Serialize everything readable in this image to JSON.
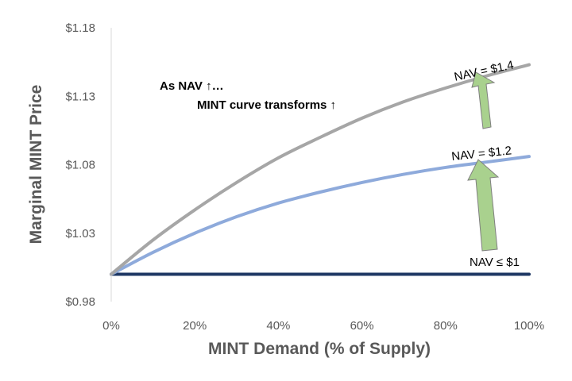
{
  "chart_data": {
    "type": "line",
    "title": "",
    "xlabel": "MINT Demand (% of Supply)",
    "ylabel": "Marginal MINT Price",
    "x": [
      0,
      10,
      20,
      30,
      40,
      50,
      60,
      70,
      80,
      90,
      100
    ],
    "x_tick_labels": [
      "0%",
      "20%",
      "40%",
      "60%",
      "80%",
      "100%"
    ],
    "x_tick_values": [
      0,
      20,
      40,
      60,
      80,
      100
    ],
    "xlim": [
      0,
      100
    ],
    "y_tick_labels": [
      "$0.98",
      "$1.03",
      "$1.08",
      "$1.13",
      "$1.18"
    ],
    "y_tick_values": [
      0.98,
      1.03,
      1.08,
      1.13,
      1.18
    ],
    "ylim": [
      0.98,
      1.18
    ],
    "grid": false,
    "series": [
      {
        "name": "NAV ≤ $1",
        "color": "#1f3864",
        "values": [
          1.0,
          1.0,
          1.0,
          1.0,
          1.0,
          1.0,
          1.0,
          1.0,
          1.0,
          1.0,
          1.0
        ]
      },
      {
        "name": "NAV = $1.2",
        "color": "#8eaadb",
        "values": [
          1.0,
          1.016,
          1.03,
          1.042,
          1.052,
          1.06,
          1.067,
          1.073,
          1.078,
          1.082,
          1.086
        ]
      },
      {
        "name": "NAV = $1.4",
        "color": "#a6a6a6",
        "values": [
          1.0,
          1.025,
          1.047,
          1.067,
          1.085,
          1.1,
          1.114,
          1.126,
          1.136,
          1.145,
          1.153
        ]
      }
    ],
    "annotations": [
      "As NAV ↑…",
      "MINT curve transforms ↑"
    ],
    "arrow_color": "#a9d18e"
  }
}
